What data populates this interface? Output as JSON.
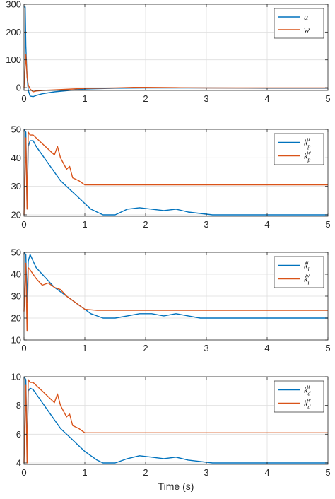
{
  "colors": {
    "blue": "#0072BD",
    "orange": "#D95319",
    "grid": "#dedede",
    "axis": "#262626"
  },
  "chart_data": [
    {
      "type": "line",
      "xlabel": "",
      "ylabel": "",
      "xlim": [
        0,
        5
      ],
      "ylim": [
        -10,
        300
      ],
      "xticks": [
        0,
        1,
        2,
        3,
        4,
        5
      ],
      "xtick_labels": [
        "0",
        "1",
        "2",
        "3",
        "4",
        "5"
      ],
      "yticks": [
        0,
        100,
        200,
        300
      ],
      "ytick_labels": [
        "0",
        "100",
        "200",
        "300"
      ],
      "grid": true,
      "legend_position": "top-right",
      "series": [
        {
          "name": "u",
          "sub": "",
          "color": "#0072BD",
          "x": [
            0,
            0.02,
            0.03,
            0.05,
            0.07,
            0.1,
            0.15,
            0.2,
            0.3,
            0.5,
            0.8,
            1.0,
            1.5,
            2.0,
            2.5,
            3.0,
            4.0,
            5.0
          ],
          "y": [
            290,
            290,
            150,
            40,
            -10,
            -30,
            -32,
            -28,
            -22,
            -15,
            -9,
            -5,
            -2,
            -1,
            -1,
            -1,
            -2,
            -2
          ]
        },
        {
          "name": "w",
          "sub": "",
          "color": "#D95319",
          "x": [
            0,
            0.03,
            0.05,
            0.07,
            0.1,
            0.15,
            0.2,
            0.3,
            0.5,
            0.8,
            1.0,
            1.5,
            1.8,
            2.0,
            2.5,
            3.0,
            4.0,
            5.0
          ],
          "y": [
            0,
            120,
            40,
            10,
            -5,
            -15,
            -12,
            -10,
            -8,
            -5,
            -3,
            -1,
            1,
            1,
            0,
            -1,
            -1,
            -1
          ]
        }
      ]
    },
    {
      "type": "line",
      "xlabel": "",
      "ylabel": "",
      "xlim": [
        0,
        5
      ],
      "ylim": [
        19.5,
        50
      ],
      "xticks": [
        0,
        1,
        2,
        3,
        4,
        5
      ],
      "xtick_labels": [
        "0",
        "1",
        "2",
        "3",
        "4",
        "5"
      ],
      "yticks": [
        20,
        30,
        40,
        50
      ],
      "ytick_labels": [
        "20",
        "30",
        "40",
        "50"
      ],
      "grid": true,
      "legend_position": "top-right",
      "series": [
        {
          "name": "k",
          "sub": "p",
          "sup": "u",
          "color": "#0072BD",
          "x": [
            0,
            0.03,
            0.05,
            0.07,
            0.1,
            0.15,
            0.2,
            0.3,
            0.4,
            0.5,
            0.6,
            0.7,
            0.8,
            0.9,
            1.0,
            1.1,
            1.2,
            1.3,
            1.5,
            1.7,
            1.9,
            2.1,
            2.3,
            2.5,
            2.7,
            2.9,
            3.1,
            3.3,
            4.0,
            5.0
          ],
          "y": [
            50,
            49,
            23,
            44,
            46,
            46,
            44,
            41,
            38,
            35,
            32,
            30,
            28,
            26,
            24,
            22,
            21,
            20,
            20,
            22,
            22.5,
            22,
            21.5,
            22,
            21,
            20.5,
            20,
            20,
            20,
            20
          ]
        },
        {
          "name": "k",
          "sub": "p",
          "sup": "w",
          "color": "#D95319",
          "x": [
            0,
            0.03,
            0.05,
            0.07,
            0.1,
            0.15,
            0.2,
            0.3,
            0.4,
            0.5,
            0.55,
            0.6,
            0.7,
            0.75,
            0.8,
            0.9,
            1.0,
            1.2,
            1.5,
            2.0,
            2.5,
            3.0,
            4.0,
            5.0
          ],
          "y": [
            20,
            47,
            22,
            49,
            48,
            48,
            47,
            45,
            43,
            41,
            44,
            40,
            36,
            37,
            33,
            32,
            30.5,
            30.5,
            30.5,
            30.5,
            30.5,
            30.5,
            30.5,
            30.5
          ]
        }
      ]
    },
    {
      "type": "line",
      "xlabel": "",
      "ylabel": "",
      "xlim": [
        0,
        5
      ],
      "ylim": [
        10,
        50
      ],
      "xticks": [
        0,
        1,
        2,
        3,
        4,
        5
      ],
      "xtick_labels": [
        "0",
        "1",
        "2",
        "3",
        "4",
        "5"
      ],
      "yticks": [
        10,
        20,
        30,
        40,
        50
      ],
      "ytick_labels": [
        "10",
        "20",
        "30",
        "40",
        "50"
      ],
      "grid": true,
      "legend_position": "top-right",
      "series": [
        {
          "name": "k",
          "sub": "i",
          "sup": "u",
          "color": "#0072BD",
          "x": [
            0,
            0.03,
            0.05,
            0.07,
            0.1,
            0.15,
            0.2,
            0.3,
            0.4,
            0.5,
            0.6,
            0.7,
            0.8,
            0.9,
            1.0,
            1.1,
            1.2,
            1.3,
            1.5,
            1.7,
            1.9,
            2.1,
            2.3,
            2.5,
            2.7,
            2.9,
            3.1,
            3.3,
            4.0,
            5.0
          ],
          "y": [
            50,
            49,
            27,
            46,
            49,
            46,
            43,
            40,
            37,
            34,
            32,
            30,
            28,
            26,
            24,
            22,
            21,
            20,
            20,
            21,
            22,
            22,
            21,
            22,
            21,
            20,
            20,
            20,
            20,
            20
          ]
        },
        {
          "name": "k",
          "sub": "i",
          "sup": "w",
          "color": "#D95319",
          "x": [
            0,
            0.03,
            0.05,
            0.07,
            0.1,
            0.15,
            0.2,
            0.3,
            0.4,
            0.5,
            0.6,
            0.7,
            0.8,
            0.9,
            1.0,
            1.2,
            1.5,
            2.0,
            2.5,
            3.0,
            4.0,
            5.0
          ],
          "y": [
            23,
            45,
            14,
            43,
            42,
            40,
            38,
            35,
            36,
            34,
            33,
            30,
            28,
            26,
            24,
            23.5,
            23.5,
            23.5,
            23.5,
            23.5,
            23.5,
            23.5
          ]
        }
      ]
    },
    {
      "type": "line",
      "xlabel": "Time (s)",
      "ylabel": "",
      "xlim": [
        0,
        5
      ],
      "ylim": [
        3.9,
        10
      ],
      "xticks": [
        0,
        1,
        2,
        3,
        4,
        5
      ],
      "xtick_labels": [
        "0",
        "1",
        "2",
        "3",
        "4",
        "5"
      ],
      "yticks": [
        4,
        6,
        8,
        10
      ],
      "ytick_labels": [
        "4",
        "6",
        "8",
        "10"
      ],
      "grid": true,
      "legend_position": "top-right",
      "series": [
        {
          "name": "k",
          "sub": "d",
          "sup": "u",
          "color": "#0072BD",
          "x": [
            0,
            0.03,
            0.05,
            0.07,
            0.1,
            0.15,
            0.2,
            0.3,
            0.4,
            0.5,
            0.6,
            0.7,
            0.8,
            0.9,
            1.0,
            1.1,
            1.2,
            1.3,
            1.5,
            1.7,
            1.9,
            2.1,
            2.3,
            2.5,
            2.7,
            2.9,
            3.1,
            3.3,
            4.0,
            5.0
          ],
          "y": [
            10,
            9.8,
            4.6,
            9.0,
            9.2,
            9.1,
            8.8,
            8.2,
            7.6,
            7.0,
            6.4,
            6.0,
            5.6,
            5.2,
            4.8,
            4.5,
            4.2,
            4.0,
            4.0,
            4.3,
            4.5,
            4.4,
            4.3,
            4.4,
            4.2,
            4.1,
            4.0,
            4.0,
            4.0,
            4.0
          ]
        },
        {
          "name": "k",
          "sub": "d",
          "sup": "w",
          "color": "#D95319",
          "x": [
            0,
            0.03,
            0.05,
            0.07,
            0.1,
            0.15,
            0.2,
            0.3,
            0.4,
            0.5,
            0.55,
            0.6,
            0.7,
            0.75,
            0.8,
            0.9,
            1.0,
            1.2,
            1.5,
            2.0,
            2.5,
            3.0,
            4.0,
            5.0
          ],
          "y": [
            4.0,
            9.4,
            4.0,
            9.8,
            9.6,
            9.6,
            9.4,
            9.0,
            8.6,
            8.2,
            8.8,
            8.0,
            7.2,
            7.4,
            6.6,
            6.4,
            6.1,
            6.1,
            6.1,
            6.1,
            6.1,
            6.1,
            6.1,
            6.1
          ]
        }
      ]
    }
  ]
}
